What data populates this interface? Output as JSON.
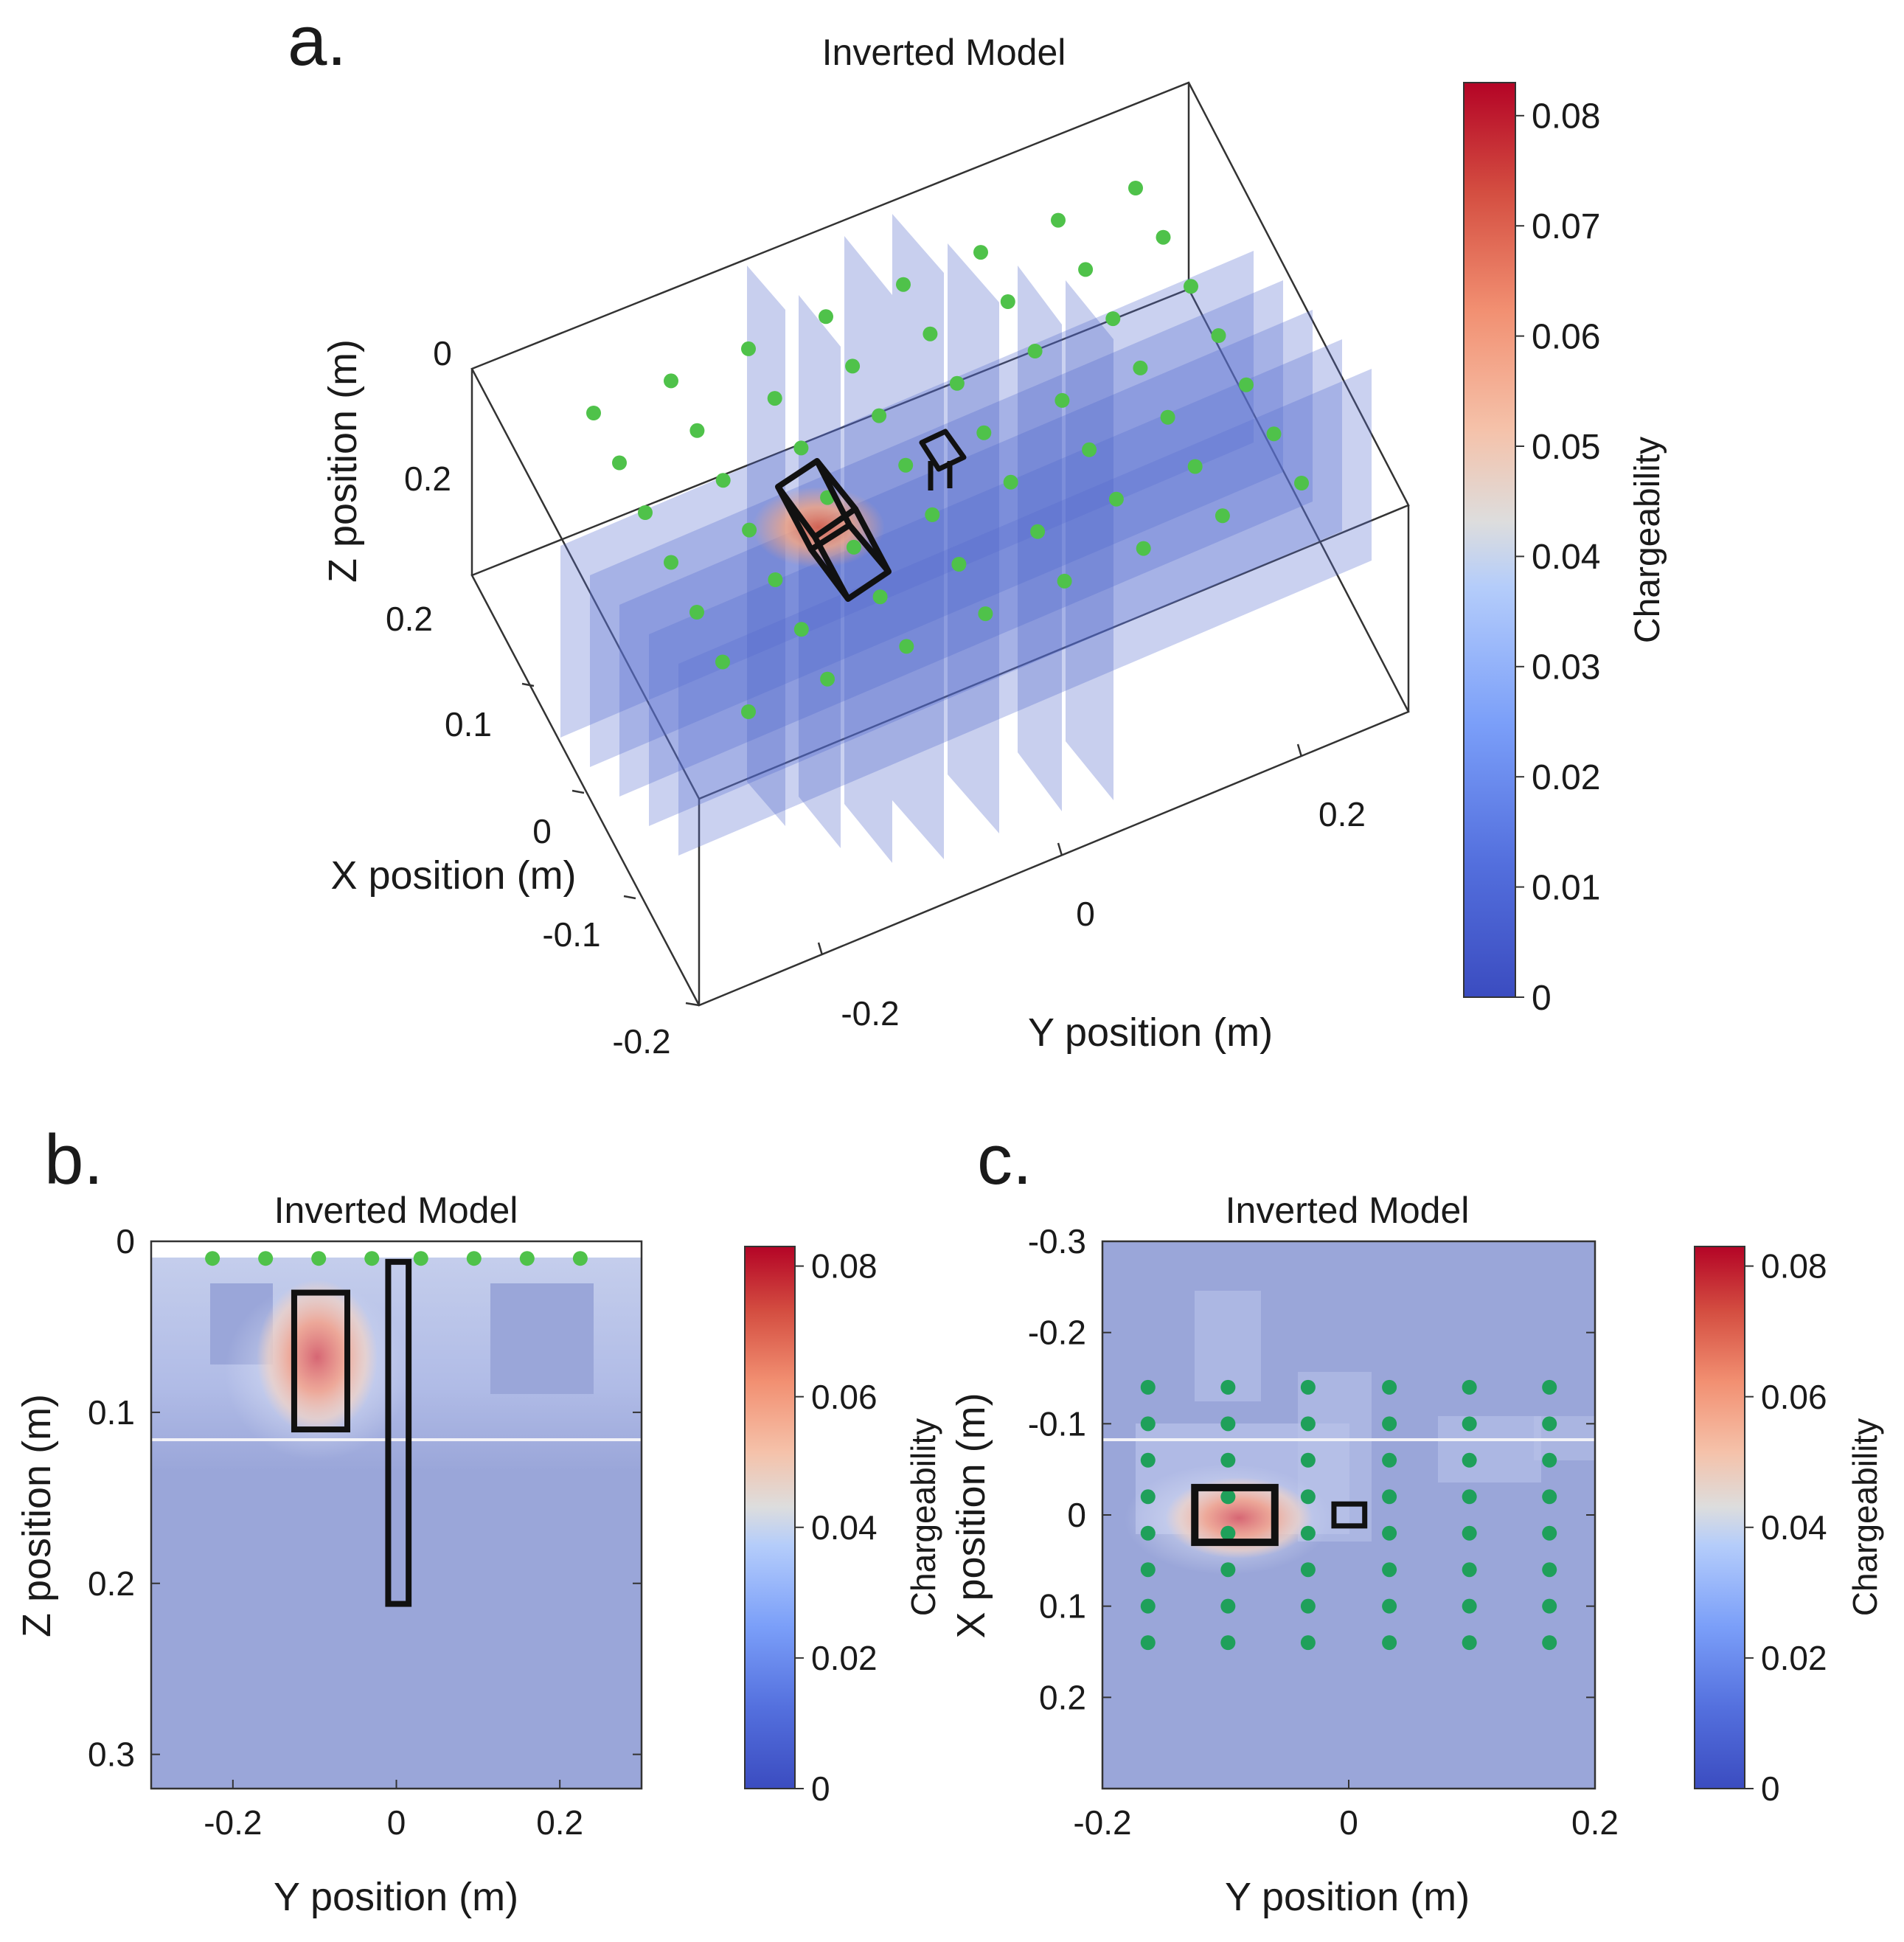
{
  "figure": {
    "panels": {
      "a": "a.",
      "b": "b.",
      "c": "c."
    }
  },
  "colors": {
    "low": "#3b4cc0",
    "mid": "#dddddd",
    "high": "#b40426",
    "background_model": "#9aa6d9",
    "electrode": "#4fc24a",
    "electrode_dark": "#1fa05a",
    "outline": "#111111"
  },
  "chart_data": [
    {
      "id": "a",
      "type": "heatmap",
      "title": "Inverted Model",
      "view": "3d-slices",
      "xlabel": "X position (m)",
      "ylabel": "Y position (m)",
      "zlabel": "Z position (m)",
      "x_ticks": [
        "-0.2",
        "-0.1",
        "0",
        "0.1",
        "0.2"
      ],
      "y_ticks": [
        "-0.2",
        "0",
        "0.2"
      ],
      "z_ticks": [
        "0",
        "0.2"
      ],
      "colorbar": {
        "label": "Chargeability",
        "ticks": [
          "0",
          "0.01",
          "0.02",
          "0.03",
          "0.04",
          "0.05",
          "0.06",
          "0.07",
          "0.08"
        ],
        "range": [
          0,
          0.083
        ]
      },
      "electrode_grid": {
        "rows": 6,
        "cols": 8,
        "spacing_m": 0.065
      },
      "anomalies": [
        {
          "name": "cube target",
          "peak_chargeability": 0.07
        },
        {
          "name": "vertical rod target",
          "peak_chargeability": 0.02
        }
      ]
    },
    {
      "id": "b",
      "type": "heatmap",
      "title": "Inverted Model",
      "xlabel": "Y position (m)",
      "ylabel": "Z position (m)",
      "x_ticks": [
        "-0.2",
        "0",
        "0.2"
      ],
      "y_ticks": [
        "0",
        "0.1",
        "0.2",
        "0.3"
      ],
      "xlim": [
        -0.3,
        0.3
      ],
      "ylim": [
        0,
        0.32
      ],
      "electrodes_y": [
        -0.225,
        -0.16,
        -0.095,
        -0.03,
        0.03,
        0.095,
        0.16,
        0.225
      ],
      "electrodes_z": 0.01,
      "targets": [
        {
          "name": "block",
          "y": [
            -0.125,
            -0.06
          ],
          "z": [
            0.03,
            0.11
          ]
        },
        {
          "name": "rod",
          "y": [
            -0.01,
            0.015
          ],
          "z": [
            0.012,
            0.212
          ]
        }
      ],
      "anomaly": {
        "y": -0.09,
        "z": 0.065,
        "peak": 0.07
      },
      "colorbar": {
        "label": "Chargeability",
        "ticks": [
          "0",
          "0.02",
          "0.04",
          "0.06",
          "0.08"
        ],
        "range": [
          0,
          0.083
        ]
      }
    },
    {
      "id": "c",
      "type": "heatmap",
      "title": "Inverted Model",
      "xlabel": "Y position (m)",
      "ylabel": "X position (m)",
      "x_ticks": [
        "-0.2",
        "0",
        "0.2"
      ],
      "y_ticks": [
        "-0.3",
        "-0.2",
        "-0.1",
        "0",
        "0.1",
        "0.2"
      ],
      "xlim": [
        -0.2,
        0.2
      ],
      "ylim": [
        -0.3,
        0.3
      ],
      "electrodes_y": [
        -0.163,
        -0.098,
        -0.033,
        0.033,
        0.098,
        0.163
      ],
      "electrodes_x": [
        -0.14,
        -0.1,
        -0.06,
        -0.02,
        0.02,
        0.06,
        0.1,
        0.14
      ],
      "targets": [
        {
          "name": "block",
          "y": [
            -0.125,
            -0.06
          ],
          "x": [
            -0.03,
            0.03
          ]
        },
        {
          "name": "rod",
          "y": [
            -0.012,
            0.013
          ],
          "x": [
            -0.012,
            0.012
          ]
        }
      ],
      "anomaly": {
        "y": -0.095,
        "x": 0.0,
        "peak": 0.07
      },
      "colorbar": {
        "label": "Chargeability",
        "ticks": [
          "0",
          "0.02",
          "0.04",
          "0.06",
          "0.08"
        ],
        "range": [
          0,
          0.083
        ]
      }
    }
  ]
}
